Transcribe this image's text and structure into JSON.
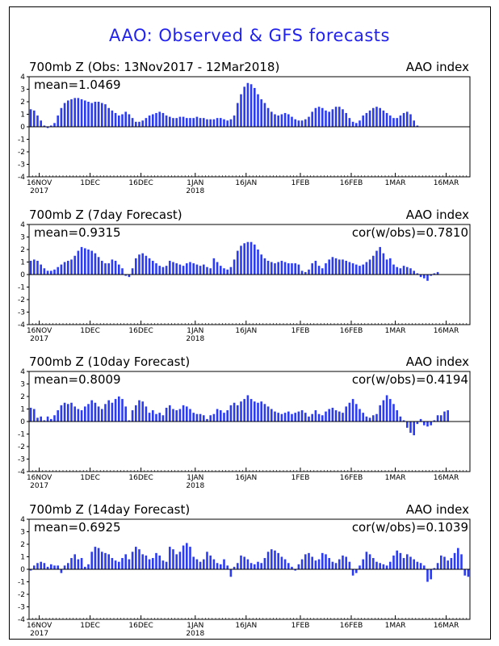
{
  "page": {
    "title": "AAO: Observed & GFS forecasts"
  },
  "chart_data": [
    {
      "type": "bar",
      "title": "700mb Z (Obs: 13Nov2017 - 12Mar2018)",
      "right_title": "AAO index",
      "mean_label": "mean=1.0469",
      "cor_label": "",
      "ylim": [
        -4,
        4
      ],
      "yticks": [
        "4",
        "3",
        "2",
        "1",
        "0",
        "-1",
        "-2",
        "-3",
        "-4"
      ],
      "xlabels": [
        {
          "day": 3,
          "lines": [
            "16NOV",
            "2017"
          ]
        },
        {
          "day": 18,
          "lines": [
            "1DEC",
            ""
          ]
        },
        {
          "day": 33,
          "lines": [
            "16DEC",
            ""
          ]
        },
        {
          "day": 49,
          "lines": [
            "1JAN",
            "2018"
          ]
        },
        {
          "day": 64,
          "lines": [
            "16JAN",
            ""
          ]
        },
        {
          "day": 80,
          "lines": [
            "1FEB",
            ""
          ]
        },
        {
          "day": 95,
          "lines": [
            "16FEB",
            ""
          ]
        },
        {
          "day": 108,
          "lines": [
            "1MAR",
            ""
          ]
        },
        {
          "day": 123,
          "lines": [
            "16MAR",
            ""
          ]
        }
      ],
      "values": [
        1.4,
        1.3,
        0.9,
        0.5,
        0.1,
        -0.1,
        0.1,
        0.3,
        0.9,
        1.5,
        1.9,
        2.1,
        2.2,
        2.3,
        2.3,
        2.2,
        2.1,
        2.0,
        1.9,
        2.0,
        2.0,
        1.9,
        1.8,
        1.5,
        1.3,
        1.1,
        0.9,
        1.0,
        1.2,
        1.0,
        0.7,
        0.4,
        0.4,
        0.5,
        0.7,
        0.9,
        1.0,
        1.1,
        1.2,
        1.1,
        0.9,
        0.8,
        0.7,
        0.7,
        0.8,
        0.8,
        0.7,
        0.7,
        0.7,
        0.8,
        0.7,
        0.7,
        0.6,
        0.6,
        0.6,
        0.7,
        0.7,
        0.6,
        0.5,
        0.6,
        0.9,
        1.9,
        2.6,
        3.2,
        3.5,
        3.4,
        3.1,
        2.6,
        2.2,
        1.9,
        1.5,
        1.2,
        1.0,
        0.9,
        1.0,
        1.1,
        1.0,
        0.8,
        0.6,
        0.5,
        0.5,
        0.6,
        0.8,
        1.2,
        1.5,
        1.6,
        1.5,
        1.3,
        1.2,
        1.4,
        1.6,
        1.6,
        1.4,
        1.1,
        0.7,
        0.4,
        0.3,
        0.5,
        0.9,
        1.1,
        1.3,
        1.5,
        1.6,
        1.5,
        1.3,
        1.1,
        0.9,
        0.7,
        0.7,
        0.9,
        1.1,
        1.2,
        1.0,
        0.5,
        0.1,
        0,
        0,
        0,
        0,
        0,
        0,
        0,
        0,
        0,
        0,
        0,
        0,
        0,
        0,
        0
      ]
    },
    {
      "type": "bar",
      "title": "700mb Z (7day Forecast)",
      "right_title": "AAO index",
      "mean_label": "mean=0.9315",
      "cor_label": "cor(w/obs)=0.7810",
      "ylim": [
        -4,
        4
      ],
      "yticks": [
        "4",
        "3",
        "2",
        "1",
        "0",
        "-1",
        "-2",
        "-3",
        "-4"
      ],
      "xlabels": [
        {
          "day": 3,
          "lines": [
            "16NOV",
            "2017"
          ]
        },
        {
          "day": 18,
          "lines": [
            "1DEC",
            ""
          ]
        },
        {
          "day": 33,
          "lines": [
            "16DEC",
            ""
          ]
        },
        {
          "day": 49,
          "lines": [
            "1JAN",
            "2018"
          ]
        },
        {
          "day": 64,
          "lines": [
            "16JAN",
            ""
          ]
        },
        {
          "day": 80,
          "lines": [
            "1FEB",
            ""
          ]
        },
        {
          "day": 95,
          "lines": [
            "16FEB",
            ""
          ]
        },
        {
          "day": 108,
          "lines": [
            "1MAR",
            ""
          ]
        },
        {
          "day": 123,
          "lines": [
            "16MAR",
            ""
          ]
        }
      ],
      "values": [
        1.1,
        1.2,
        1.1,
        0.8,
        0.5,
        0.3,
        0.3,
        0.4,
        0.6,
        0.8,
        1.0,
        1.1,
        1.2,
        1.5,
        1.9,
        2.2,
        2.1,
        2.0,
        1.9,
        1.7,
        1.4,
        1.1,
        0.9,
        0.9,
        1.2,
        1.1,
        0.8,
        0.5,
        -0.1,
        -0.2,
        0.5,
        1.3,
        1.6,
        1.7,
        1.5,
        1.3,
        1.1,
        0.9,
        0.7,
        0.6,
        0.7,
        1.1,
        1.0,
        0.9,
        0.8,
        0.7,
        0.9,
        1.0,
        0.9,
        0.8,
        0.7,
        0.8,
        0.6,
        0.5,
        1.3,
        1.0,
        0.7,
        0.5,
        0.4,
        0.6,
        1.2,
        1.9,
        2.3,
        2.5,
        2.6,
        2.6,
        2.4,
        2.0,
        1.6,
        1.3,
        1.1,
        1.0,
        0.9,
        1.0,
        1.1,
        1.0,
        0.9,
        0.9,
        0.9,
        0.8,
        0.3,
        0.2,
        0.4,
        0.9,
        1.1,
        0.7,
        0.5,
        0.9,
        1.2,
        1.4,
        1.3,
        1.2,
        1.2,
        1.1,
        1.0,
        0.9,
        0.8,
        0.7,
        0.8,
        1.0,
        1.2,
        1.5,
        1.9,
        2.2,
        1.7,
        1.2,
        1.3,
        0.8,
        0.6,
        0.5,
        0.7,
        0.6,
        0.5,
        0.3,
        0.1,
        -0.2,
        -0.3,
        -0.5,
        -0.1,
        0.1,
        0.2,
        0,
        0,
        0,
        0,
        0,
        0,
        0,
        0,
        0
      ]
    },
    {
      "type": "bar",
      "title": "700mb Z (10day Forecast)",
      "right_title": "AAO index",
      "mean_label": "mean=0.8009",
      "cor_label": "cor(w/obs)=0.4194",
      "ylim": [
        -4,
        4
      ],
      "yticks": [
        "4",
        "3",
        "2",
        "1",
        "0",
        "-1",
        "-2",
        "-3",
        "-4"
      ],
      "xlabels": [
        {
          "day": 3,
          "lines": [
            "16NOV",
            "2017"
          ]
        },
        {
          "day": 18,
          "lines": [
            "1DEC",
            ""
          ]
        },
        {
          "day": 33,
          "lines": [
            "16DEC",
            ""
          ]
        },
        {
          "day": 49,
          "lines": [
            "1JAN",
            "2018"
          ]
        },
        {
          "day": 64,
          "lines": [
            "16JAN",
            ""
          ]
        },
        {
          "day": 80,
          "lines": [
            "1FEB",
            ""
          ]
        },
        {
          "day": 95,
          "lines": [
            "16FEB",
            ""
          ]
        },
        {
          "day": 108,
          "lines": [
            "1MAR",
            ""
          ]
        },
        {
          "day": 123,
          "lines": [
            "16MAR",
            ""
          ]
        }
      ],
      "values": [
        1.1,
        1.0,
        0.3,
        0.4,
        0.1,
        0.4,
        0.2,
        0.5,
        0.9,
        1.3,
        1.5,
        1.4,
        1.5,
        1.2,
        1.0,
        0.9,
        1.2,
        1.4,
        1.7,
        1.5,
        1.2,
        1.0,
        1.4,
        1.7,
        1.5,
        1.8,
        2.0,
        1.8,
        1.2,
        0.1,
        0.9,
        1.3,
        1.7,
        1.6,
        1.2,
        0.7,
        0.9,
        0.6,
        0.7,
        0.5,
        1.1,
        1.3,
        1.0,
        0.9,
        1.0,
        1.3,
        1.2,
        1.0,
        0.7,
        0.6,
        0.6,
        0.5,
        0.2,
        0.5,
        0.6,
        1.0,
        0.9,
        0.7,
        0.9,
        1.3,
        1.5,
        1.3,
        1.6,
        1.8,
        2.1,
        1.8,
        1.6,
        1.5,
        1.6,
        1.4,
        1.2,
        1.0,
        0.8,
        0.7,
        0.6,
        0.7,
        0.8,
        0.6,
        0.7,
        0.8,
        0.9,
        0.7,
        0.4,
        0.6,
        0.9,
        0.6,
        0.5,
        0.8,
        1.0,
        1.1,
        0.9,
        0.8,
        0.7,
        1.2,
        1.5,
        1.8,
        1.4,
        1.0,
        0.7,
        0.4,
        0.3,
        0.5,
        0.6,
        1.3,
        1.7,
        2.1,
        1.8,
        1.4,
        0.9,
        0.4,
        0.1,
        -0.5,
        -0.9,
        -1.1,
        -0.2,
        0.2,
        -0.3,
        -0.4,
        -0.3,
        0.1,
        0.5,
        0.5,
        0.8,
        0.9,
        0,
        0,
        0,
        0,
        0,
        0
      ]
    },
    {
      "type": "bar",
      "title": "700mb Z (14day Forecast)",
      "right_title": "AAO index",
      "mean_label": "mean=0.6925",
      "cor_label": "cor(w/obs)=0.1039",
      "ylim": [
        -4,
        4
      ],
      "yticks": [
        "4",
        "3",
        "2",
        "1",
        "0",
        "-1",
        "-2",
        "-3",
        "-4"
      ],
      "xlabels": [
        {
          "day": 3,
          "lines": [
            "16NOV",
            "2017"
          ]
        },
        {
          "day": 18,
          "lines": [
            "1DEC",
            ""
          ]
        },
        {
          "day": 33,
          "lines": [
            "16DEC",
            ""
          ]
        },
        {
          "day": 49,
          "lines": [
            "1JAN",
            "2018"
          ]
        },
        {
          "day": 64,
          "lines": [
            "16JAN",
            ""
          ]
        },
        {
          "day": 80,
          "lines": [
            "1FEB",
            ""
          ]
        },
        {
          "day": 95,
          "lines": [
            "16FEB",
            ""
          ]
        },
        {
          "day": 108,
          "lines": [
            "1MAR",
            ""
          ]
        },
        {
          "day": 123,
          "lines": [
            "16MAR",
            ""
          ]
        }
      ],
      "values": [
        -0.1,
        0.3,
        0.5,
        0.6,
        0.5,
        0.2,
        0.4,
        0.3,
        0.3,
        -0.3,
        0.3,
        0.5,
        0.9,
        1.2,
        0.8,
        0.9,
        0.2,
        0.4,
        1.4,
        1.8,
        1.7,
        1.4,
        1.3,
        1.2,
        0.9,
        0.7,
        0.6,
        0.9,
        1.2,
        0.8,
        1.4,
        1.8,
        1.6,
        1.2,
        1.1,
        0.8,
        0.9,
        1.3,
        1.1,
        0.7,
        0.6,
        1.8,
        1.6,
        1.2,
        1.4,
        1.9,
        2.1,
        1.8,
        1.0,
        0.8,
        0.6,
        0.8,
        1.4,
        1.1,
        0.8,
        0.5,
        0.4,
        0.8,
        0.3,
        -0.6,
        0.2,
        0.5,
        1.1,
        1.0,
        0.8,
        0.5,
        0.4,
        0.6,
        0.5,
        0.9,
        1.4,
        1.6,
        1.5,
        1.3,
        1.0,
        0.8,
        0.5,
        0.2,
        -0.1,
        0.4,
        0.8,
        1.2,
        1.3,
        1.0,
        0.7,
        0.8,
        1.3,
        1.2,
        0.9,
        0.6,
        0.5,
        0.8,
        1.1,
        1.0,
        0.6,
        -0.5,
        -0.3,
        0.3,
        0.8,
        1.4,
        1.2,
        0.9,
        0.6,
        0.5,
        0.4,
        0.3,
        0.6,
        1.1,
        1.5,
        1.3,
        0.9,
        1.2,
        1.0,
        0.8,
        0.6,
        0.5,
        0.3,
        -1.0,
        -0.8,
        0.1,
        0.5,
        1.1,
        1.0,
        0.7,
        0.9,
        1.3,
        1.7,
        1.2,
        -0.5,
        -0.6
      ]
    }
  ]
}
